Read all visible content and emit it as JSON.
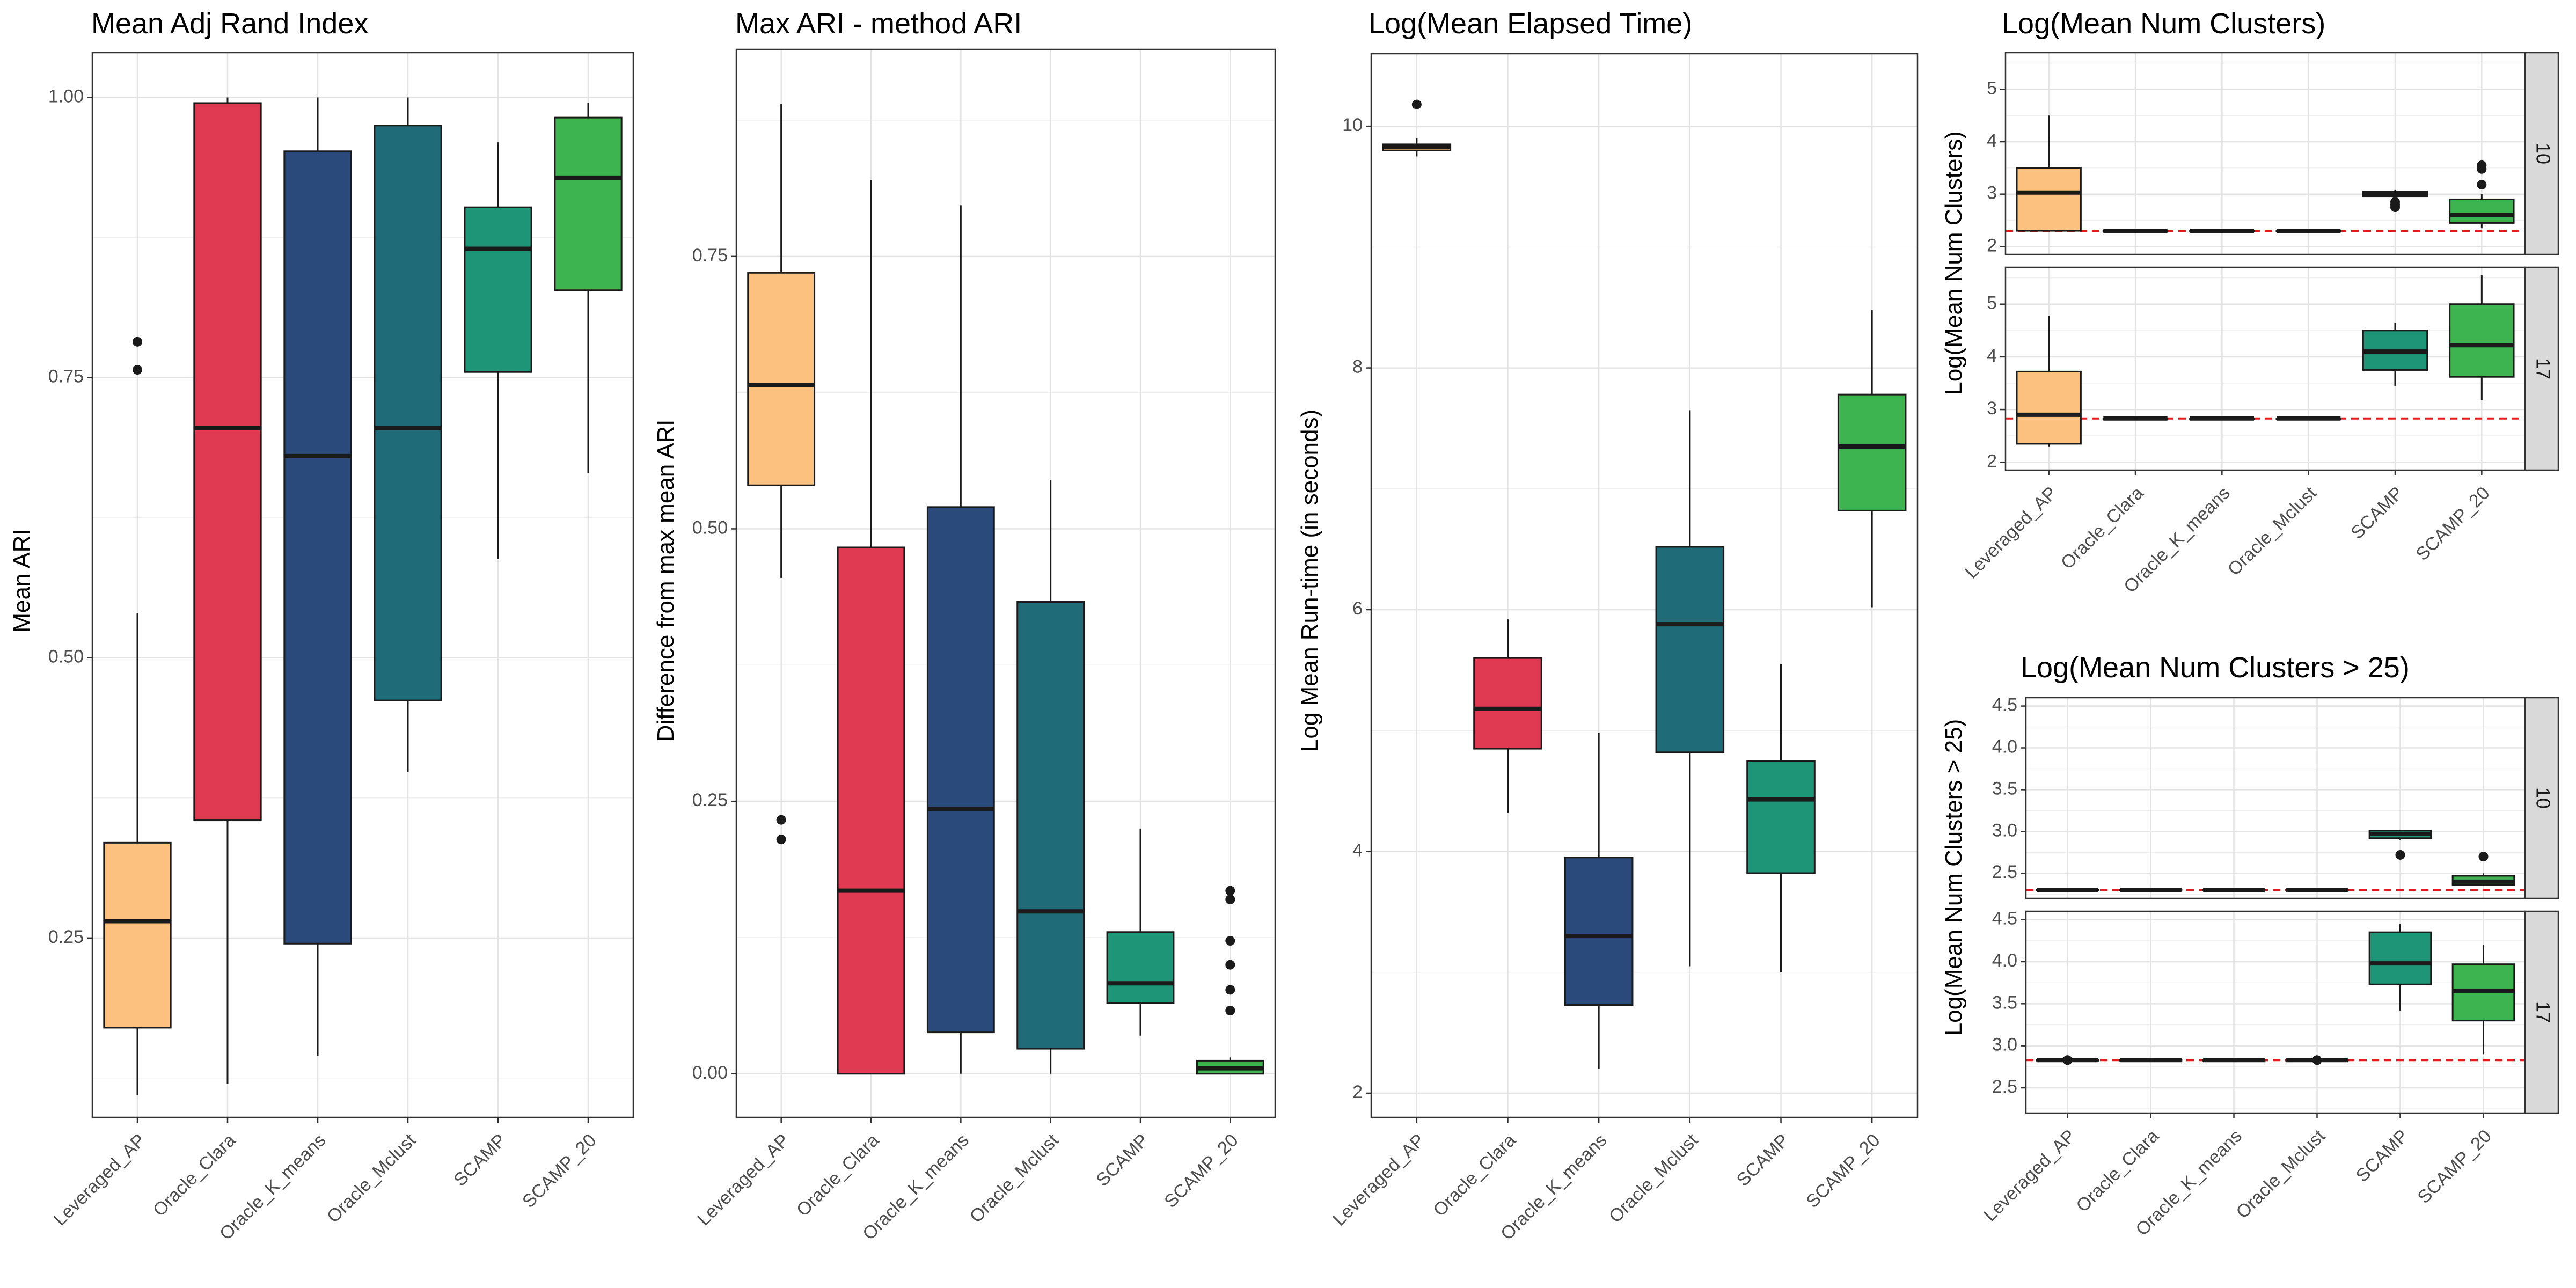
{
  "figure": {
    "colors": {
      "Leveraged_AP": "#FCC17E",
      "Oracle_Clara": "#E03A52",
      "Oracle_K_means": "#2A4A7B",
      "Oracle_Mclust": "#1F6B78",
      "SCAMP": "#1E9577",
      "SCAMP_20": "#3DB44F"
    },
    "reference_line_color": "#E41A1C"
  },
  "chart_data": [
    {
      "id": "ari",
      "type": "boxplot",
      "title": "Mean Adj Rand Index",
      "xlabel": "",
      "ylabel": "Mean ARI",
      "ylim": [
        0.09,
        1.04
      ],
      "yticks": [
        0.25,
        0.5,
        0.75,
        1.0
      ],
      "yticklabels": [
        "0.25",
        "0.50",
        "0.75",
        "1.00"
      ],
      "categories": [
        "Leveraged_AP",
        "Oracle_Clara",
        "Oracle_K_means",
        "Oracle_Mclust",
        "SCAMP",
        "SCAMP_20"
      ],
      "boxes": [
        {
          "min": 0.11,
          "q1": 0.17,
          "median": 0.265,
          "q3": 0.335,
          "max": 0.54,
          "outliers": [
            0.757,
            0.782
          ]
        },
        {
          "min": 0.12,
          "q1": 0.355,
          "median": 0.705,
          "q3": 0.995,
          "max": 1.0,
          "outliers": []
        },
        {
          "min": 0.145,
          "q1": 0.245,
          "median": 0.68,
          "q3": 0.952,
          "max": 1.0,
          "outliers": []
        },
        {
          "min": 0.398,
          "q1": 0.462,
          "median": 0.705,
          "q3": 0.975,
          "max": 1.0,
          "outliers": []
        },
        {
          "min": 0.588,
          "q1": 0.755,
          "median": 0.865,
          "q3": 0.902,
          "max": 0.96,
          "outliers": []
        },
        {
          "min": 0.665,
          "q1": 0.828,
          "median": 0.928,
          "q3": 0.982,
          "max": 0.995,
          "outliers": []
        }
      ]
    },
    {
      "id": "maxari",
      "type": "boxplot",
      "title": "Max ARI - method ARI",
      "xlabel": "",
      "ylabel": "Difference from max mean ARI",
      "ylim": [
        -0.04,
        0.94
      ],
      "yticks": [
        0.0,
        0.25,
        0.5,
        0.75
      ],
      "yticklabels": [
        "0.00",
        "0.25",
        "0.50",
        "0.75"
      ],
      "categories": [
        "Leveraged_AP",
        "Oracle_Clara",
        "Oracle_K_means",
        "Oracle_Mclust",
        "SCAMP",
        "SCAMP_20"
      ],
      "boxes": [
        {
          "min": 0.455,
          "q1": 0.54,
          "median": 0.632,
          "q3": 0.735,
          "max": 0.89,
          "outliers": [
            0.215,
            0.233
          ]
        },
        {
          "min": 0.0,
          "q1": 0.0,
          "median": 0.168,
          "q3": 0.483,
          "max": 0.82,
          "outliers": []
        },
        {
          "min": 0.0,
          "q1": 0.038,
          "median": 0.243,
          "q3": 0.52,
          "max": 0.797,
          "outliers": []
        },
        {
          "min": 0.0,
          "q1": 0.023,
          "median": 0.149,
          "q3": 0.433,
          "max": 0.545,
          "outliers": []
        },
        {
          "min": 0.035,
          "q1": 0.065,
          "median": 0.083,
          "q3": 0.13,
          "max": 0.225,
          "outliers": []
        },
        {
          "min": 0.0,
          "q1": 0.0,
          "median": 0.005,
          "q3": 0.012,
          "max": 0.015,
          "outliers": [
            0.058,
            0.077,
            0.1,
            0.122,
            0.16,
            0.168
          ]
        }
      ]
    },
    {
      "id": "time",
      "type": "boxplot",
      "title": "Log(Mean Elapsed Time)",
      "xlabel": "",
      "ylabel": "Log Mean Run-time (in seconds)",
      "ylim": [
        1.8,
        10.6
      ],
      "yticks": [
        2,
        4,
        6,
        8,
        10
      ],
      "yticklabels": [
        "2",
        "4",
        "6",
        "8",
        "10"
      ],
      "categories": [
        "Leveraged_AP",
        "Oracle_Clara",
        "Oracle_K_means",
        "Oracle_Mclust",
        "SCAMP",
        "SCAMP_20"
      ],
      "boxes": [
        {
          "min": 9.75,
          "q1": 9.8,
          "median": 9.83,
          "q3": 9.85,
          "max": 9.9,
          "outliers": [
            10.18
          ]
        },
        {
          "min": 4.32,
          "q1": 4.85,
          "median": 5.18,
          "q3": 5.6,
          "max": 5.92,
          "outliers": []
        },
        {
          "min": 2.2,
          "q1": 2.73,
          "median": 3.3,
          "q3": 3.95,
          "max": 4.98,
          "outliers": []
        },
        {
          "min": 3.05,
          "q1": 4.82,
          "median": 5.88,
          "q3": 6.52,
          "max": 7.65,
          "outliers": []
        },
        {
          "min": 3.0,
          "q1": 3.82,
          "median": 4.43,
          "q3": 4.75,
          "max": 5.55,
          "outliers": []
        },
        {
          "min": 6.02,
          "q1": 6.82,
          "median": 7.35,
          "q3": 7.78,
          "max": 8.48,
          "outliers": []
        }
      ]
    },
    {
      "id": "clusters",
      "type": "boxplot",
      "title": "Log(Mean Num Clusters)",
      "xlabel": "",
      "ylabel": "Log(Mean Num Clusters)",
      "categories": [
        "Leveraged_AP",
        "Oracle_Clara",
        "Oracle_K_means",
        "Oracle_Mclust",
        "SCAMP",
        "SCAMP_20"
      ],
      "facets": [
        {
          "label": "10",
          "ylim": [
            1.85,
            5.7
          ],
          "yticks": [
            2,
            3,
            4,
            5
          ],
          "yticklabels": [
            "2",
            "3",
            "4",
            "5"
          ],
          "reference_line": 2.3,
          "boxes": [
            {
              "min": 2.3,
              "q1": 2.3,
              "median": 3.03,
              "q3": 3.5,
              "max": 4.5,
              "outliers": []
            },
            {
              "min": 2.3,
              "q1": 2.3,
              "median": 2.3,
              "q3": 2.3,
              "max": 2.3,
              "outliers": []
            },
            {
              "min": 2.3,
              "q1": 2.3,
              "median": 2.3,
              "q3": 2.3,
              "max": 2.3,
              "outliers": []
            },
            {
              "min": 2.3,
              "q1": 2.3,
              "median": 2.3,
              "q3": 2.3,
              "max": 2.3,
              "outliers": []
            },
            {
              "min": 2.9,
              "q1": 2.95,
              "median": 3.0,
              "q3": 3.05,
              "max": 3.08,
              "outliers": [
                2.75,
                2.8,
                2.85
              ]
            },
            {
              "min": 2.35,
              "q1": 2.45,
              "median": 2.6,
              "q3": 2.9,
              "max": 3.0,
              "outliers": [
                3.18,
                3.48,
                3.55
              ]
            }
          ]
        },
        {
          "label": "17",
          "ylim": [
            1.85,
            5.7
          ],
          "yticks": [
            2,
            3,
            4,
            5
          ],
          "yticklabels": [
            "2",
            "3",
            "4",
            "5"
          ],
          "reference_line": 2.83,
          "boxes": [
            {
              "min": 2.3,
              "q1": 2.35,
              "median": 2.9,
              "q3": 3.72,
              "max": 4.78,
              "outliers": []
            },
            {
              "min": 2.83,
              "q1": 2.83,
              "median": 2.83,
              "q3": 2.83,
              "max": 2.83,
              "outliers": []
            },
            {
              "min": 2.83,
              "q1": 2.83,
              "median": 2.83,
              "q3": 2.83,
              "max": 2.83,
              "outliers": []
            },
            {
              "min": 2.83,
              "q1": 2.83,
              "median": 2.83,
              "q3": 2.83,
              "max": 2.83,
              "outliers": []
            },
            {
              "min": 3.45,
              "q1": 3.75,
              "median": 4.1,
              "q3": 4.5,
              "max": 4.65,
              "outliers": []
            },
            {
              "min": 3.18,
              "q1": 3.62,
              "median": 4.22,
              "q3": 5.0,
              "max": 5.55,
              "outliers": []
            }
          ]
        }
      ]
    },
    {
      "id": "clusters25",
      "type": "boxplot",
      "title": "Log(Mean Num Clusters > 25)",
      "xlabel": "",
      "ylabel": "Log(Mean Num Clusters > 25)",
      "categories": [
        "Leveraged_AP",
        "Oracle_Clara",
        "Oracle_K_means",
        "Oracle_Mclust",
        "SCAMP",
        "SCAMP_20"
      ],
      "facets": [
        {
          "label": "10",
          "ylim": [
            2.2,
            4.6
          ],
          "yticks": [
            2.5,
            3.0,
            3.5,
            4.0,
            4.5
          ],
          "yticklabels": [
            "2.5",
            "3.0",
            "3.5",
            "4.0",
            "4.5"
          ],
          "reference_line": 2.3,
          "boxes": [
            {
              "min": 2.3,
              "q1": 2.3,
              "median": 2.3,
              "q3": 2.3,
              "max": 2.3,
              "outliers": []
            },
            {
              "min": 2.3,
              "q1": 2.3,
              "median": 2.3,
              "q3": 2.3,
              "max": 2.3,
              "outliers": []
            },
            {
              "min": 2.3,
              "q1": 2.3,
              "median": 2.3,
              "q3": 2.3,
              "max": 2.3,
              "outliers": []
            },
            {
              "min": 2.3,
              "q1": 2.3,
              "median": 2.3,
              "q3": 2.3,
              "max": 2.3,
              "outliers": []
            },
            {
              "min": 2.9,
              "q1": 2.92,
              "median": 2.97,
              "q3": 3.01,
              "max": 3.02,
              "outliers": [
                2.72
              ]
            },
            {
              "min": 2.35,
              "q1": 2.36,
              "median": 2.4,
              "q3": 2.47,
              "max": 2.5,
              "outliers": [
                2.7
              ]
            }
          ]
        },
        {
          "label": "17",
          "ylim": [
            2.2,
            4.6
          ],
          "yticks": [
            2.5,
            3.0,
            3.5,
            4.0,
            4.5
          ],
          "yticklabels": [
            "2.5",
            "3.0",
            "3.5",
            "4.0",
            "4.5"
          ],
          "reference_line": 2.83,
          "boxes": [
            {
              "min": 2.83,
              "q1": 2.83,
              "median": 2.83,
              "q3": 2.83,
              "max": 2.83,
              "outliers": [
                2.83
              ]
            },
            {
              "min": 2.83,
              "q1": 2.83,
              "median": 2.83,
              "q3": 2.83,
              "max": 2.83,
              "outliers": []
            },
            {
              "min": 2.83,
              "q1": 2.83,
              "median": 2.83,
              "q3": 2.83,
              "max": 2.83,
              "outliers": []
            },
            {
              "min": 2.83,
              "q1": 2.83,
              "median": 2.83,
              "q3": 2.83,
              "max": 2.83,
              "outliers": [
                2.83
              ]
            },
            {
              "min": 3.42,
              "q1": 3.73,
              "median": 3.98,
              "q3": 4.35,
              "max": 4.45,
              "outliers": []
            },
            {
              "min": 2.9,
              "q1": 3.3,
              "median": 3.65,
              "q3": 3.97,
              "max": 4.2,
              "outliers": []
            }
          ]
        }
      ]
    }
  ]
}
